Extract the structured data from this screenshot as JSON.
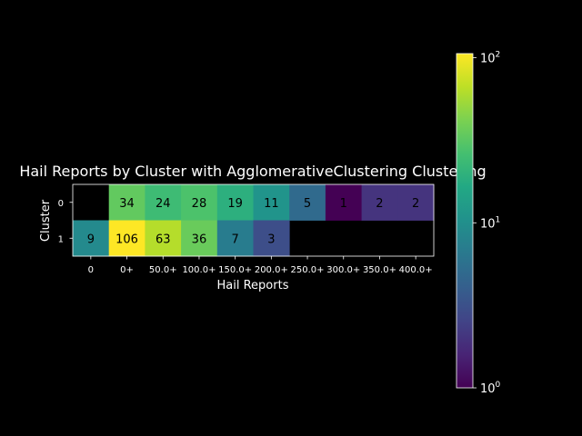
{
  "chart_data": {
    "type": "heatmap",
    "title": "Hail Reports by Cluster with AgglomerativeClustering Clustering",
    "xlabel": "Hail Reports",
    "ylabel": "Cluster",
    "x_categories": [
      "0",
      "0+",
      "50.0+",
      "100.0+",
      "150.0+",
      "200.0+",
      "250.0+",
      "300.0+",
      "350.0+",
      "400.0+"
    ],
    "y_categories": [
      "0",
      "1"
    ],
    "values": [
      [
        null,
        34,
        24,
        28,
        19,
        11,
        5,
        1,
        2,
        2
      ],
      [
        9,
        106,
        63,
        36,
        7,
        3,
        null,
        null,
        null,
        null
      ]
    ],
    "colorscale": "viridis",
    "color_scale_type": "log",
    "colorbar": {
      "range": [
        1,
        106
      ],
      "ticks": [
        {
          "value": 1,
          "base": "10",
          "exp": "0"
        },
        {
          "value": 10,
          "base": "10",
          "exp": "1"
        },
        {
          "value": 100,
          "base": "10",
          "exp": "2"
        }
      ]
    },
    "background": "#000000",
    "text_color": "#ffffff",
    "annotation_color": "#000000"
  }
}
